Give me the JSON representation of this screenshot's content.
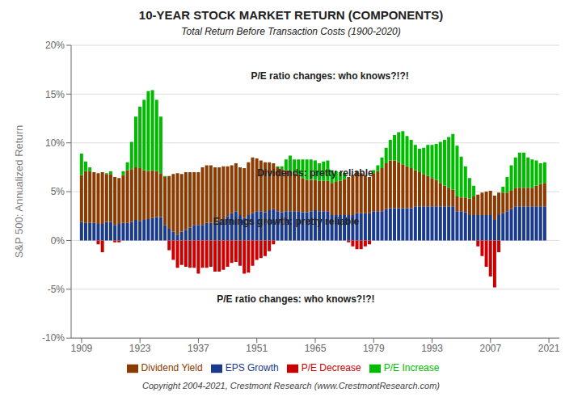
{
  "chart_data": {
    "type": "bar",
    "stacked": true,
    "title": "10-YEAR STOCK MARKET RETURN (COMPONENTS)",
    "subtitle": "Total Return Before Transaction Costs (1900-2020)",
    "y_label": "S&P 500: Annualized Return",
    "caption": "Copyright 2004-2021, Crestmont Research (www.CrestmontResearch.com)",
    "annotations": [
      "P/E ratio changes: who knows?!?!",
      "Dividends: pretty reliable",
      "Earnings growth: pretty reliable",
      "P/E ratio changes: who knows?!?!"
    ],
    "grid": true,
    "legend": "bottom",
    "xlim": [
      1906.5,
      2023.5
    ],
    "xticks": [
      1909,
      1923,
      1937,
      1951,
      1965,
      1979,
      1993,
      2007,
      2021
    ],
    "ylim": [
      -0.1,
      0.2
    ],
    "yticks": [
      {
        "value": -0.1,
        "label": "-10%"
      },
      {
        "value": -0.05,
        "label": "-5%"
      },
      {
        "value": 0.0,
        "label": "0%"
      },
      {
        "value": 0.05,
        "label": "5%"
      },
      {
        "value": 0.1,
        "label": "10%"
      },
      {
        "value": 0.15,
        "label": "15%"
      },
      {
        "value": 0.2,
        "label": "20%"
      }
    ],
    "x": [
      1909,
      1910,
      1911,
      1912,
      1913,
      1914,
      1915,
      1916,
      1917,
      1918,
      1919,
      1920,
      1921,
      1922,
      1923,
      1924,
      1925,
      1926,
      1927,
      1928,
      1929,
      1930,
      1931,
      1932,
      1933,
      1934,
      1935,
      1936,
      1937,
      1938,
      1939,
      1940,
      1941,
      1942,
      1943,
      1944,
      1945,
      1946,
      1947,
      1948,
      1949,
      1950,
      1951,
      1952,
      1953,
      1954,
      1955,
      1956,
      1957,
      1958,
      1959,
      1960,
      1961,
      1962,
      1963,
      1964,
      1965,
      1966,
      1967,
      1968,
      1969,
      1970,
      1971,
      1972,
      1973,
      1974,
      1975,
      1976,
      1977,
      1978,
      1979,
      1980,
      1981,
      1982,
      1983,
      1984,
      1985,
      1986,
      1987,
      1988,
      1989,
      1990,
      1991,
      1992,
      1993,
      1994,
      1995,
      1996,
      1997,
      1998,
      1999,
      2000,
      2001,
      2002,
      2003,
      2004,
      2005,
      2006,
      2007,
      2008,
      2009,
      2010,
      2011,
      2012,
      2013,
      2014,
      2015,
      2016,
      2017,
      2018,
      2019,
      2020
    ],
    "series": [
      {
        "name": "EPS Growth",
        "color": "#1a3a8c",
        "values": [
          0.019,
          0.018,
          0.018,
          0.018,
          0.017,
          0.017,
          0.019,
          0.019,
          0.016,
          0.017,
          0.018,
          0.018,
          0.019,
          0.021,
          0.02,
          0.021,
          0.022,
          0.023,
          0.024,
          0.024,
          0.016,
          0.012,
          0.009,
          0.006,
          0.009,
          0.011,
          0.013,
          0.016,
          0.016,
          0.016,
          0.018,
          0.018,
          0.018,
          0.02,
          0.022,
          0.025,
          0.028,
          0.03,
          0.026,
          0.023,
          0.026,
          0.028,
          0.03,
          0.03,
          0.029,
          0.031,
          0.032,
          0.03,
          0.029,
          0.03,
          0.03,
          0.03,
          0.03,
          0.029,
          0.029,
          0.03,
          0.031,
          0.03,
          0.03,
          0.03,
          0.026,
          0.026,
          0.026,
          0.026,
          0.026,
          0.026,
          0.028,
          0.028,
          0.028,
          0.028,
          0.03,
          0.03,
          0.03,
          0.032,
          0.033,
          0.033,
          0.033,
          0.033,
          0.033,
          0.033,
          0.035,
          0.035,
          0.035,
          0.035,
          0.035,
          0.035,
          0.035,
          0.035,
          0.035,
          0.035,
          0.03,
          0.03,
          0.029,
          0.026,
          0.026,
          0.026,
          0.026,
          0.026,
          0.026,
          0.021,
          0.026,
          0.028,
          0.03,
          0.032,
          0.035,
          0.035,
          0.035,
          0.035,
          0.035,
          0.035,
          0.035,
          0.035
        ]
      },
      {
        "name": "Dividend Yield",
        "color": "#8B3A00",
        "values": [
          0.048,
          0.053,
          0.053,
          0.052,
          0.052,
          0.053,
          0.049,
          0.049,
          0.049,
          0.047,
          0.049,
          0.054,
          0.054,
          0.054,
          0.054,
          0.051,
          0.049,
          0.049,
          0.047,
          0.045,
          0.049,
          0.054,
          0.059,
          0.063,
          0.059,
          0.059,
          0.057,
          0.054,
          0.054,
          0.059,
          0.059,
          0.059,
          0.057,
          0.055,
          0.054,
          0.051,
          0.049,
          0.049,
          0.049,
          0.051,
          0.054,
          0.057,
          0.054,
          0.052,
          0.051,
          0.049,
          0.047,
          0.045,
          0.044,
          0.042,
          0.041,
          0.039,
          0.037,
          0.035,
          0.033,
          0.032,
          0.031,
          0.031,
          0.031,
          0.031,
          0.033,
          0.034,
          0.035,
          0.037,
          0.039,
          0.041,
          0.043,
          0.041,
          0.039,
          0.037,
          0.039,
          0.041,
          0.044,
          0.047,
          0.049,
          0.049,
          0.047,
          0.045,
          0.043,
          0.041,
          0.037,
          0.035,
          0.033,
          0.031,
          0.029,
          0.027,
          0.024,
          0.021,
          0.019,
          0.017,
          0.015,
          0.014,
          0.015,
          0.017,
          0.019,
          0.021,
          0.023,
          0.024,
          0.025,
          0.025,
          0.023,
          0.021,
          0.019,
          0.019,
          0.019,
          0.019,
          0.019,
          0.019,
          0.019,
          0.021,
          0.023,
          0.024
        ]
      },
      {
        "name": "P/E Increase",
        "color": "#00BB00",
        "values": [
          0.022,
          0.01,
          0.004,
          0.0,
          0,
          0,
          0.001,
          0.003,
          0,
          0,
          0.004,
          0.008,
          0.028,
          0.052,
          0.063,
          0.072,
          0.082,
          0.082,
          0.073,
          0.058,
          0.001,
          0,
          0,
          0,
          0,
          0,
          0,
          0,
          0,
          0,
          0,
          0,
          0,
          0,
          0,
          0,
          0,
          0,
          0,
          0,
          0,
          0,
          0,
          0,
          0,
          0,
          0,
          0.001,
          0.003,
          0.011,
          0.016,
          0.014,
          0.016,
          0.019,
          0.021,
          0.021,
          0.02,
          0.018,
          0.02,
          0.021,
          0.013,
          0.011,
          0.009,
          0.006,
          0,
          0,
          0,
          0,
          0,
          0,
          0.003,
          0.006,
          0.011,
          0.016,
          0.021,
          0.026,
          0.031,
          0.034,
          0.031,
          0.029,
          0.026,
          0.024,
          0.027,
          0.032,
          0.034,
          0.037,
          0.042,
          0.047,
          0.052,
          0.057,
          0.052,
          0.042,
          0.032,
          0.021,
          0.011,
          0,
          0,
          0,
          0,
          0,
          0,
          0.006,
          0.016,
          0.026,
          0.031,
          0.036,
          0.036,
          0.031,
          0.029,
          0.026,
          0.021,
          0.021
        ]
      },
      {
        "name": "P/E Decrease",
        "color": "#CC0000",
        "values": [
          0,
          0,
          0,
          0,
          -0.004,
          -0.012,
          0,
          0,
          -0.002,
          -0.002,
          0,
          0,
          0,
          0,
          0,
          0,
          0,
          0,
          0,
          0,
          0,
          -0.01,
          -0.02,
          -0.028,
          -0.025,
          -0.027,
          -0.028,
          -0.028,
          -0.034,
          -0.028,
          -0.028,
          -0.027,
          -0.032,
          -0.032,
          -0.03,
          -0.027,
          -0.023,
          -0.022,
          -0.026,
          -0.034,
          -0.033,
          -0.026,
          -0.02,
          -0.018,
          -0.016,
          -0.011,
          -0.004,
          0,
          0,
          0,
          0,
          0,
          0,
          0,
          0,
          0,
          0,
          0,
          0,
          0,
          0,
          0,
          0,
          0,
          -0.002,
          -0.006,
          -0.009,
          -0.009,
          -0.006,
          -0.004,
          0,
          0,
          0,
          0,
          0,
          0,
          0,
          0,
          0,
          0,
          0,
          0,
          0,
          0,
          0,
          0,
          0,
          0,
          0,
          0,
          0,
          0,
          0,
          0,
          0,
          -0.006,
          -0.016,
          -0.027,
          -0.037,
          -0.048,
          -0.012,
          0,
          0,
          0,
          0,
          0,
          0,
          0,
          0,
          0,
          0,
          0
        ]
      }
    ]
  }
}
